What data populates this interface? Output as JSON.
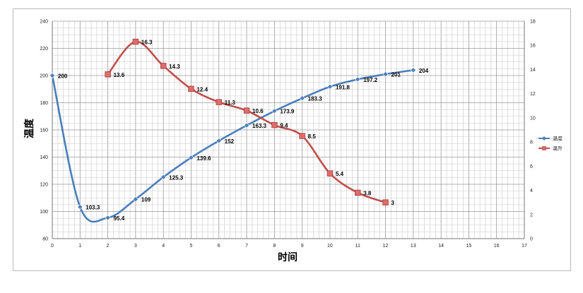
{
  "chart_data": {
    "type": "line",
    "xlabel": "时间",
    "ylabel": "温度",
    "x_ticks": [
      0,
      1,
      2,
      3,
      4,
      5,
      6,
      7,
      8,
      9,
      10,
      11,
      12,
      13,
      14,
      15,
      16,
      17
    ],
    "y_left_ticks": [
      80,
      100,
      120,
      140,
      160,
      180,
      200,
      220,
      240
    ],
    "y_right_ticks": [
      0,
      2,
      4,
      6,
      8,
      10,
      12,
      14,
      16,
      18
    ],
    "xlim": [
      0,
      17
    ],
    "ylim_left": [
      80,
      240
    ],
    "ylim_right": [
      0,
      18
    ],
    "grid": true,
    "legend_position": "right",
    "colors": {
      "series1": "#4a7ebb",
      "series2": "#c0504d",
      "series2_marker": "#e06c6a"
    },
    "series": [
      {
        "name": "温度",
        "axis": "left",
        "x": [
          0,
          1,
          2,
          3,
          4,
          5,
          6,
          7,
          8,
          9,
          10,
          11,
          12,
          13
        ],
        "values": [
          200,
          103.3,
          95.4,
          109,
          125.3,
          139.6,
          152,
          163.3,
          173.9,
          183.3,
          191.8,
          197.2,
          201,
          204
        ],
        "labels": [
          "200",
          "103.3",
          "95.4",
          "109",
          "125.3",
          "139.6",
          "152",
          "163.3",
          "173.9",
          "183.3",
          "191.8",
          "197.2",
          "201",
          "204"
        ]
      },
      {
        "name": "温升",
        "axis": "right",
        "x": [
          2,
          3,
          4,
          5,
          6,
          7,
          8,
          9,
          10,
          11,
          12
        ],
        "values": [
          13.6,
          16.3,
          14.3,
          12.4,
          11.3,
          10.6,
          9.4,
          8.5,
          5.4,
          3.8,
          3
        ],
        "labels": [
          "13.6",
          "16.3",
          "14.3",
          "12.4",
          "11.3",
          "10.6",
          "9.4",
          "8.5",
          "5.4",
          "3.8",
          "3"
        ]
      }
    ]
  }
}
